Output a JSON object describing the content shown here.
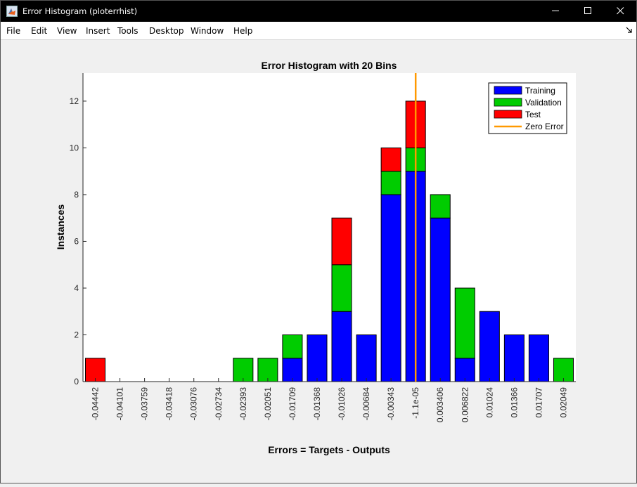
{
  "window": {
    "title": "Error Histogram (ploterrhist)",
    "controls": [
      "minimize",
      "maximize",
      "close"
    ]
  },
  "menu": [
    "File",
    "Edit",
    "View",
    "Insert",
    "Tools",
    "Desktop",
    "Window",
    "Help"
  ],
  "colors": {
    "training": "#0000ff",
    "validation": "#00cc00",
    "test": "#ff0000",
    "zero_error": "#ff9900"
  },
  "chart_data": {
    "type": "bar",
    "stacked": true,
    "title": "Error Histogram with 20 Bins",
    "xlabel": "Errors = Targets - Outputs",
    "ylabel": "Instances",
    "ylim": [
      0,
      13.2
    ],
    "yticks": [
      0,
      2,
      4,
      6,
      8,
      10,
      12
    ],
    "grid": false,
    "legend_position": "top-right",
    "categories": [
      "-0.04442",
      "-0.04101",
      "-0.03759",
      "-0.03418",
      "-0.03076",
      "-0.02734",
      "-0.02393",
      "-0.02051",
      "-0.01709",
      "-0.01368",
      "-0.01026",
      "-0.00684",
      "-0.00343",
      "-1.1e-05",
      "0.003406",
      "0.006822",
      "0.01024",
      "0.01366",
      "0.01707",
      "0.02049"
    ],
    "series": [
      {
        "name": "Training",
        "color": "#0000ff",
        "values": [
          0,
          0,
          0,
          0,
          0,
          0,
          0,
          0,
          1,
          2,
          3,
          2,
          8,
          9,
          7,
          1,
          3,
          2,
          2,
          0
        ]
      },
      {
        "name": "Validation",
        "color": "#00cc00",
        "values": [
          0,
          0,
          0,
          0,
          0,
          0,
          1,
          1,
          1,
          0,
          2,
          0,
          1,
          1,
          1,
          3,
          0,
          0,
          0,
          1
        ]
      },
      {
        "name": "Test",
        "color": "#ff0000",
        "values": [
          1,
          0,
          0,
          0,
          0,
          0,
          0,
          0,
          0,
          0,
          2,
          0,
          1,
          2,
          0,
          0,
          0,
          0,
          0,
          0
        ]
      }
    ],
    "zero_error": {
      "name": "Zero Error",
      "color": "#ff9900",
      "x": 0
    }
  }
}
